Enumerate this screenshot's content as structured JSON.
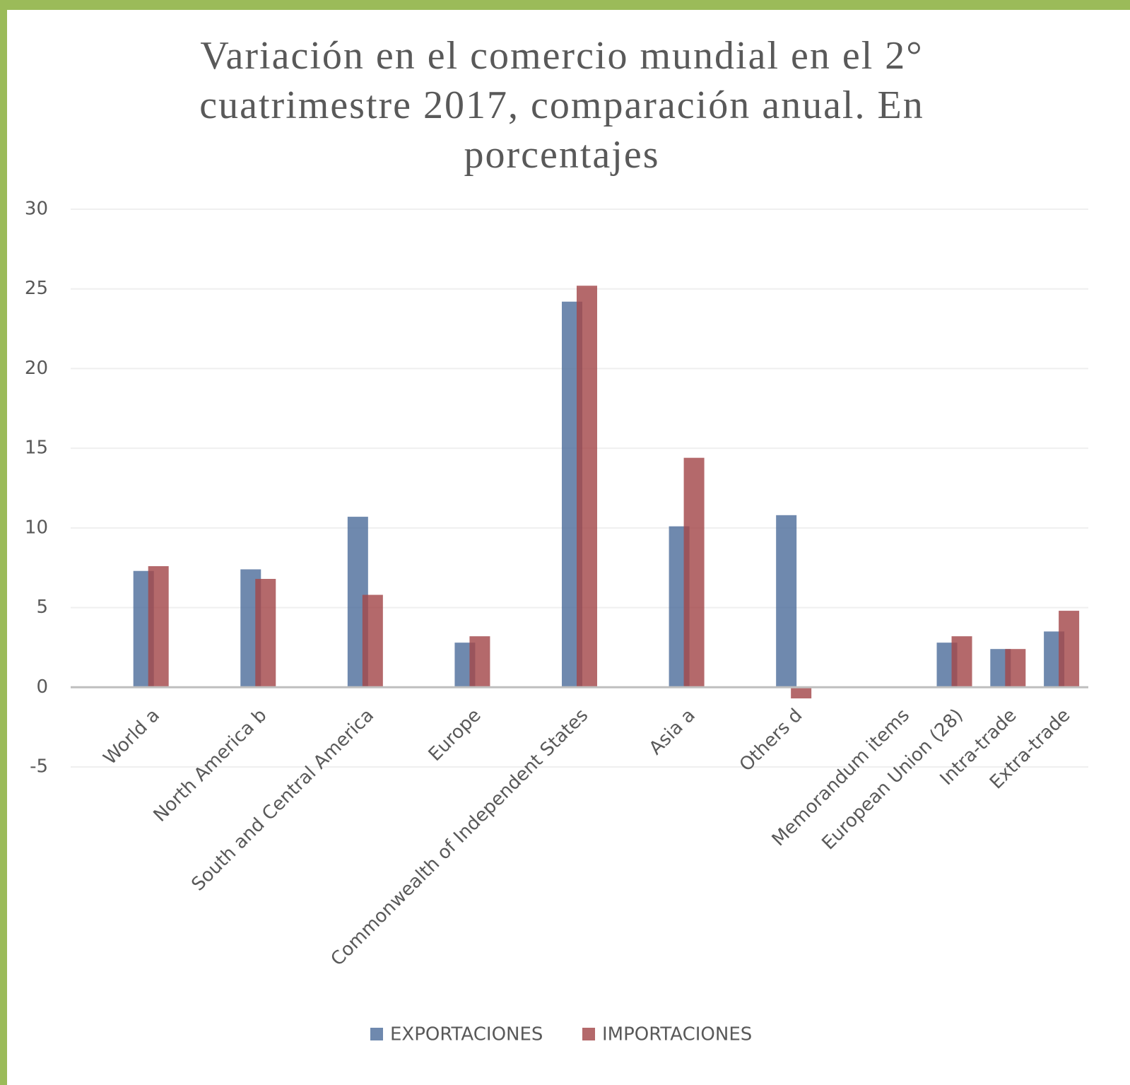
{
  "chart_data": {
    "type": "bar",
    "title": "Variación en el comercio mundial en el 2° cuatrimestre 2017, comparación anual. En porcentajes",
    "categories": [
      null,
      "World  a",
      null,
      "North America  b",
      null,
      "South and Central America",
      null,
      "Europe",
      null,
      "Commonwealth of Independent States",
      null,
      "Asia  a",
      null,
      "Others  d",
      null,
      "Memorandum items",
      "European Union (28)",
      "Intra-trade",
      "Extra-trade"
    ],
    "series": [
      {
        "name": "EXPORTACIONES",
        "color": "#4f6f9c",
        "values": [
          null,
          7.3,
          null,
          7.4,
          null,
          10.7,
          null,
          2.8,
          null,
          24.2,
          null,
          10.1,
          null,
          10.8,
          null,
          null,
          2.8,
          2.4,
          3.5
        ]
      },
      {
        "name": "IMPORTACIONES",
        "color": "#a3484b",
        "values": [
          null,
          7.6,
          null,
          6.8,
          null,
          5.8,
          null,
          3.2,
          null,
          25.2,
          null,
          14.4,
          null,
          -0.7,
          null,
          null,
          3.2,
          2.4,
          4.8
        ]
      }
    ],
    "ylim": [
      -5,
      30
    ],
    "yticks": [
      -5,
      0,
      5,
      10,
      15,
      20,
      25,
      30
    ],
    "grid": true,
    "legend": "bottom"
  }
}
